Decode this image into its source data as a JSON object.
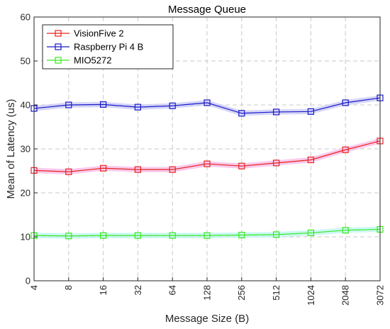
{
  "chart_data": {
    "type": "line",
    "title": "Message Queue",
    "xlabel": "Message Size (B)",
    "ylabel": "Mean of Latency (us)",
    "categories": [
      "4",
      "8",
      "16",
      "32",
      "64",
      "128",
      "256",
      "512",
      "1024",
      "2048",
      "3072"
    ],
    "ylim": [
      0,
      60
    ],
    "yticks": [
      0,
      10,
      20,
      30,
      40,
      50,
      60
    ],
    "grid": true,
    "legend_position": "top-left",
    "series": [
      {
        "name": "VisionFive 2",
        "color": "#e8231f",
        "band_color": "#f5b8e6",
        "values": [
          25.1,
          24.8,
          25.6,
          25.3,
          25.3,
          26.6,
          26.1,
          26.8,
          27.5,
          29.8,
          31.8
        ]
      },
      {
        "name": "Raspberry Pi 4 B",
        "color": "#1a1ac8",
        "band_color": "#c8c8f5",
        "values": [
          39.2,
          40.0,
          40.1,
          39.5,
          39.8,
          40.5,
          38.1,
          38.4,
          38.5,
          40.5,
          41.6
        ]
      },
      {
        "name": "MIO5272",
        "color": "#3ce81f",
        "band_color": "#b8f5f0",
        "values": [
          10.3,
          10.2,
          10.3,
          10.3,
          10.3,
          10.3,
          10.4,
          10.5,
          10.9,
          11.5,
          11.7
        ]
      }
    ]
  }
}
